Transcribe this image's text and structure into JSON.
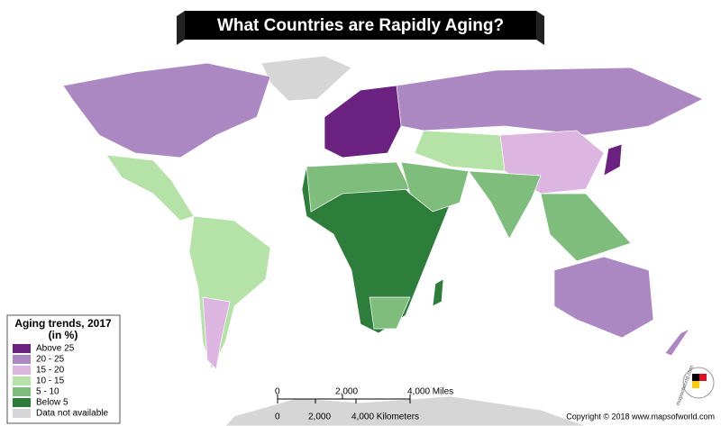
{
  "title": "What Countries are Rapidly Aging?",
  "legend": {
    "title": "Aging trends, 2017",
    "subtitle": "(in %)",
    "items": [
      {
        "label": "Above 25",
        "color": "#6b2180"
      },
      {
        "label": "20 - 25",
        "color": "#ab88c2"
      },
      {
        "label": "15 - 20",
        "color": "#dcb5e0"
      },
      {
        "label": "10 - 15",
        "color": "#b5e2a6"
      },
      {
        "label": "5 - 10",
        "color": "#7fbd7c"
      },
      {
        "label": "Below 5",
        "color": "#2d7d3b"
      },
      {
        "label": "Data not available",
        "color": "#d6d6d6"
      }
    ]
  },
  "scale": {
    "miles": [
      "0",
      "2,000",
      "4,000 Miles"
    ],
    "kilometers": [
      "0",
      "2,000",
      "4,000 Kilometers"
    ]
  },
  "copyright": "Copyright © 2018 www.mapsofworld.com",
  "logo": "mapsofworld.com"
}
